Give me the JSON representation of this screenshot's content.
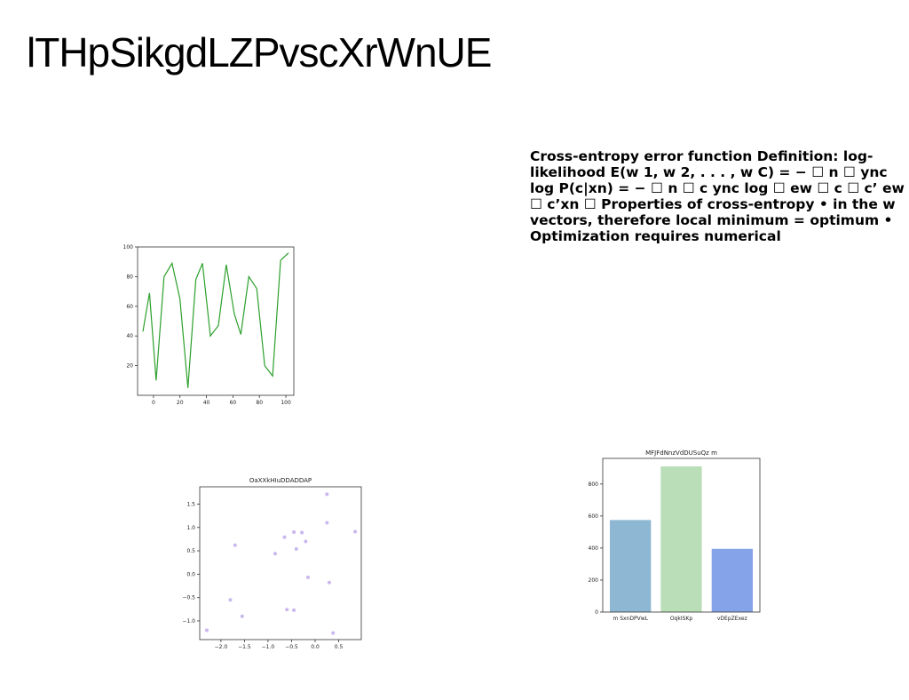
{
  "slide": {
    "title": "lTHpSikgdLZPvscXrWnUE",
    "body": "Cross-entropy error function Definition: log-likelihood E(w 1, w 2, . . . , w C) = − ☐ n ☐ ync log P(c|xn) = − ☐ n ☐ c ync log ☐ ew ☐ c ☐ c’ ew ☐ c’xn ☐ Properties of cross-entropy • in the w vectors, therefore local minimum = optimum • Optimization requires numerical"
  },
  "chart_data": [
    {
      "type": "line",
      "title": "",
      "xlabel": "",
      "ylabel": "",
      "x": [
        -8,
        -3,
        2,
        8,
        14,
        20,
        26,
        32,
        37,
        43,
        49,
        55,
        61,
        66,
        72,
        78,
        84,
        90,
        96,
        102
      ],
      "series": [
        {
          "color": "#2ca02c",
          "values": [
            43,
            69,
            10,
            80,
            89,
            65,
            5,
            78,
            89,
            40,
            47,
            88,
            55,
            41,
            80,
            72,
            20,
            13,
            91,
            96
          ]
        }
      ],
      "xlim": [
        -12,
        106
      ],
      "ylim": [
        0,
        100
      ],
      "xticks": [
        0,
        20,
        40,
        60,
        80,
        100
      ],
      "yticks": [
        20,
        40,
        60,
        80,
        100
      ],
      "grid": false
    },
    {
      "type": "scatter",
      "title": "OaXXkHIuDDADDAP",
      "xlabel": "",
      "ylabel": "",
      "color": "#c9b8ee",
      "points": [
        [
          -2.3,
          -1.2
        ],
        [
          -1.8,
          -0.55
        ],
        [
          -1.7,
          0.62
        ],
        [
          -1.55,
          -0.9
        ],
        [
          -0.85,
          0.44
        ],
        [
          -0.65,
          0.79
        ],
        [
          -0.6,
          -0.76
        ],
        [
          -0.45,
          0.9
        ],
        [
          -0.45,
          -0.77
        ],
        [
          -0.4,
          0.54
        ],
        [
          -0.28,
          0.89
        ],
        [
          -0.2,
          0.7
        ],
        [
          -0.15,
          -0.07
        ],
        [
          0.25,
          1.1
        ],
        [
          0.25,
          1.71
        ],
        [
          0.3,
          -0.18
        ],
        [
          0.38,
          -1.26
        ],
        [
          0.85,
          0.91
        ]
      ],
      "xlim": [
        -2.45,
        0.98
      ],
      "ylim": [
        -1.4,
        1.87
      ],
      "xticks": [
        -2.0,
        -1.5,
        -1.0,
        -0.5,
        0.0,
        0.5
      ],
      "xtick_labels": [
        "−2.0",
        "−1.5",
        "−1.0",
        "−0.5",
        "0.0",
        "0.5"
      ],
      "yticks": [
        -1.0,
        -0.5,
        0.0,
        0.5,
        1.0,
        1.5
      ],
      "ytick_labels": [
        "−1.0",
        "−0.5",
        "0.0",
        "0.5",
        "1.0",
        "1.5"
      ],
      "grid": false
    },
    {
      "type": "bar",
      "title": "MFJFdNnzVdDUSuQz m",
      "xlabel": "",
      "ylabel": "",
      "categories": [
        "m SxnDPVwL",
        "OqkISKp",
        "vDEpZExez"
      ],
      "values": [
        575,
        910,
        395
      ],
      "colors": [
        "#8db7d2",
        "#badfb8",
        "#84a3e8"
      ],
      "ylim": [
        0,
        960
      ],
      "yticks": [
        0,
        200,
        400,
        600,
        800
      ],
      "grid": false
    }
  ]
}
